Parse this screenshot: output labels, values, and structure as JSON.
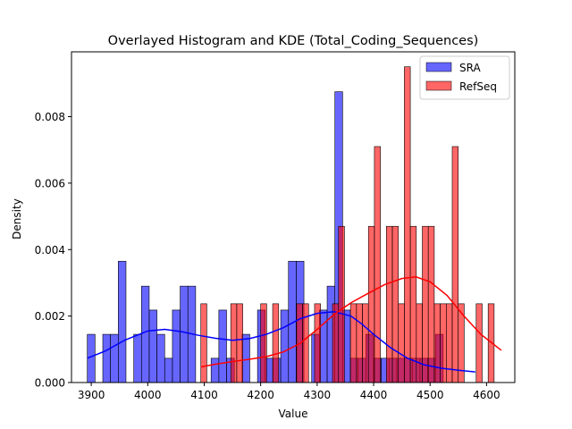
{
  "chart_data": {
    "type": "bar",
    "title": "Overlayed Histogram and KDE (Total_Coding_Sequences)",
    "xlabel": "Value",
    "ylabel": "Density",
    "xlim": [
      3865,
      4650
    ],
    "ylim": [
      0,
      0.00995
    ],
    "xticks": [
      3900,
      4000,
      4100,
      4200,
      4300,
      4400,
      4500,
      4600
    ],
    "yticks": [
      0.0,
      0.002,
      0.004,
      0.006,
      0.008
    ],
    "ytick_labels": [
      "0.000",
      "0.002",
      "0.004",
      "0.006",
      "0.008"
    ],
    "grid": false,
    "legend_position": "top-right",
    "series": [
      {
        "name": "SRA",
        "kind": "histogram",
        "bin_start": 3893,
        "bin_width": 13.7,
        "densities": [
          0.00145,
          0,
          0.00145,
          0.00145,
          0.00365,
          0,
          0.00145,
          0.0029,
          0.00218,
          0.00145,
          0.00073,
          0.00218,
          0.0029,
          0.0029,
          0,
          0,
          0.00073,
          0.00218,
          0.00073,
          0,
          0.00145,
          0,
          0.00218,
          0.00073,
          0.00073,
          0.00218,
          0.00365,
          0.00365,
          0,
          0.00145,
          0.00218,
          0.0029,
          0.00875,
          0.00218,
          0.00073,
          0.00073,
          0.00145,
          0.00073,
          0.00073,
          0.00073,
          0.00073,
          0.00073,
          0.00073,
          0.00073,
          0.00073,
          0.00145
        ],
        "kde_x": [
          3893,
          3925,
          3960,
          4000,
          4030,
          4060,
          4090,
          4120,
          4150,
          4180,
          4210,
          4240,
          4270,
          4300,
          4330,
          4360,
          4380,
          4400,
          4430,
          4460,
          4490,
          4520,
          4550,
          4580
        ],
        "kde_y": [
          0.00073,
          0.00095,
          0.00128,
          0.00155,
          0.0016,
          0.00153,
          0.00142,
          0.00133,
          0.00127,
          0.00132,
          0.00145,
          0.00165,
          0.00192,
          0.00208,
          0.00213,
          0.002,
          0.00175,
          0.00145,
          0.00105,
          0.00073,
          0.00053,
          0.00043,
          0.00037,
          0.00032
        ],
        "color": "#0000ff"
      },
      {
        "name": "RefSeq",
        "kind": "histogram",
        "bin_start": 4094,
        "bin_width": 10.6,
        "densities": [
          0.00237,
          0,
          0,
          0,
          0,
          0.00237,
          0.00237,
          0,
          0,
          0,
          0.00237,
          0,
          0.00237,
          0,
          0,
          0,
          0.00237,
          0.00237,
          0,
          0.00237,
          0,
          0,
          0.00237,
          0.0047,
          0,
          0.00237,
          0.00237,
          0.00237,
          0.0047,
          0.0071,
          0,
          0.0047,
          0.0047,
          0.00237,
          0.0095,
          0.0047,
          0.00237,
          0.0047,
          0.0047,
          0.00237,
          0.00237,
          0.00237,
          0.0071,
          0.00237,
          0,
          0,
          0.00237,
          0,
          0.00237
        ],
        "kde_x": [
          4094,
          4120,
          4150,
          4180,
          4210,
          4240,
          4270,
          4300,
          4330,
          4360,
          4390,
          4420,
          4450,
          4475,
          4500,
          4530,
          4560,
          4590,
          4626
        ],
        "kde_y": [
          0.00047,
          0.00055,
          0.00063,
          0.0007,
          0.00078,
          0.00092,
          0.00118,
          0.0016,
          0.00205,
          0.0024,
          0.00268,
          0.00295,
          0.00313,
          0.00318,
          0.00303,
          0.00262,
          0.002,
          0.00145,
          0.00097
        ],
        "color": "#ff0000"
      }
    ]
  }
}
